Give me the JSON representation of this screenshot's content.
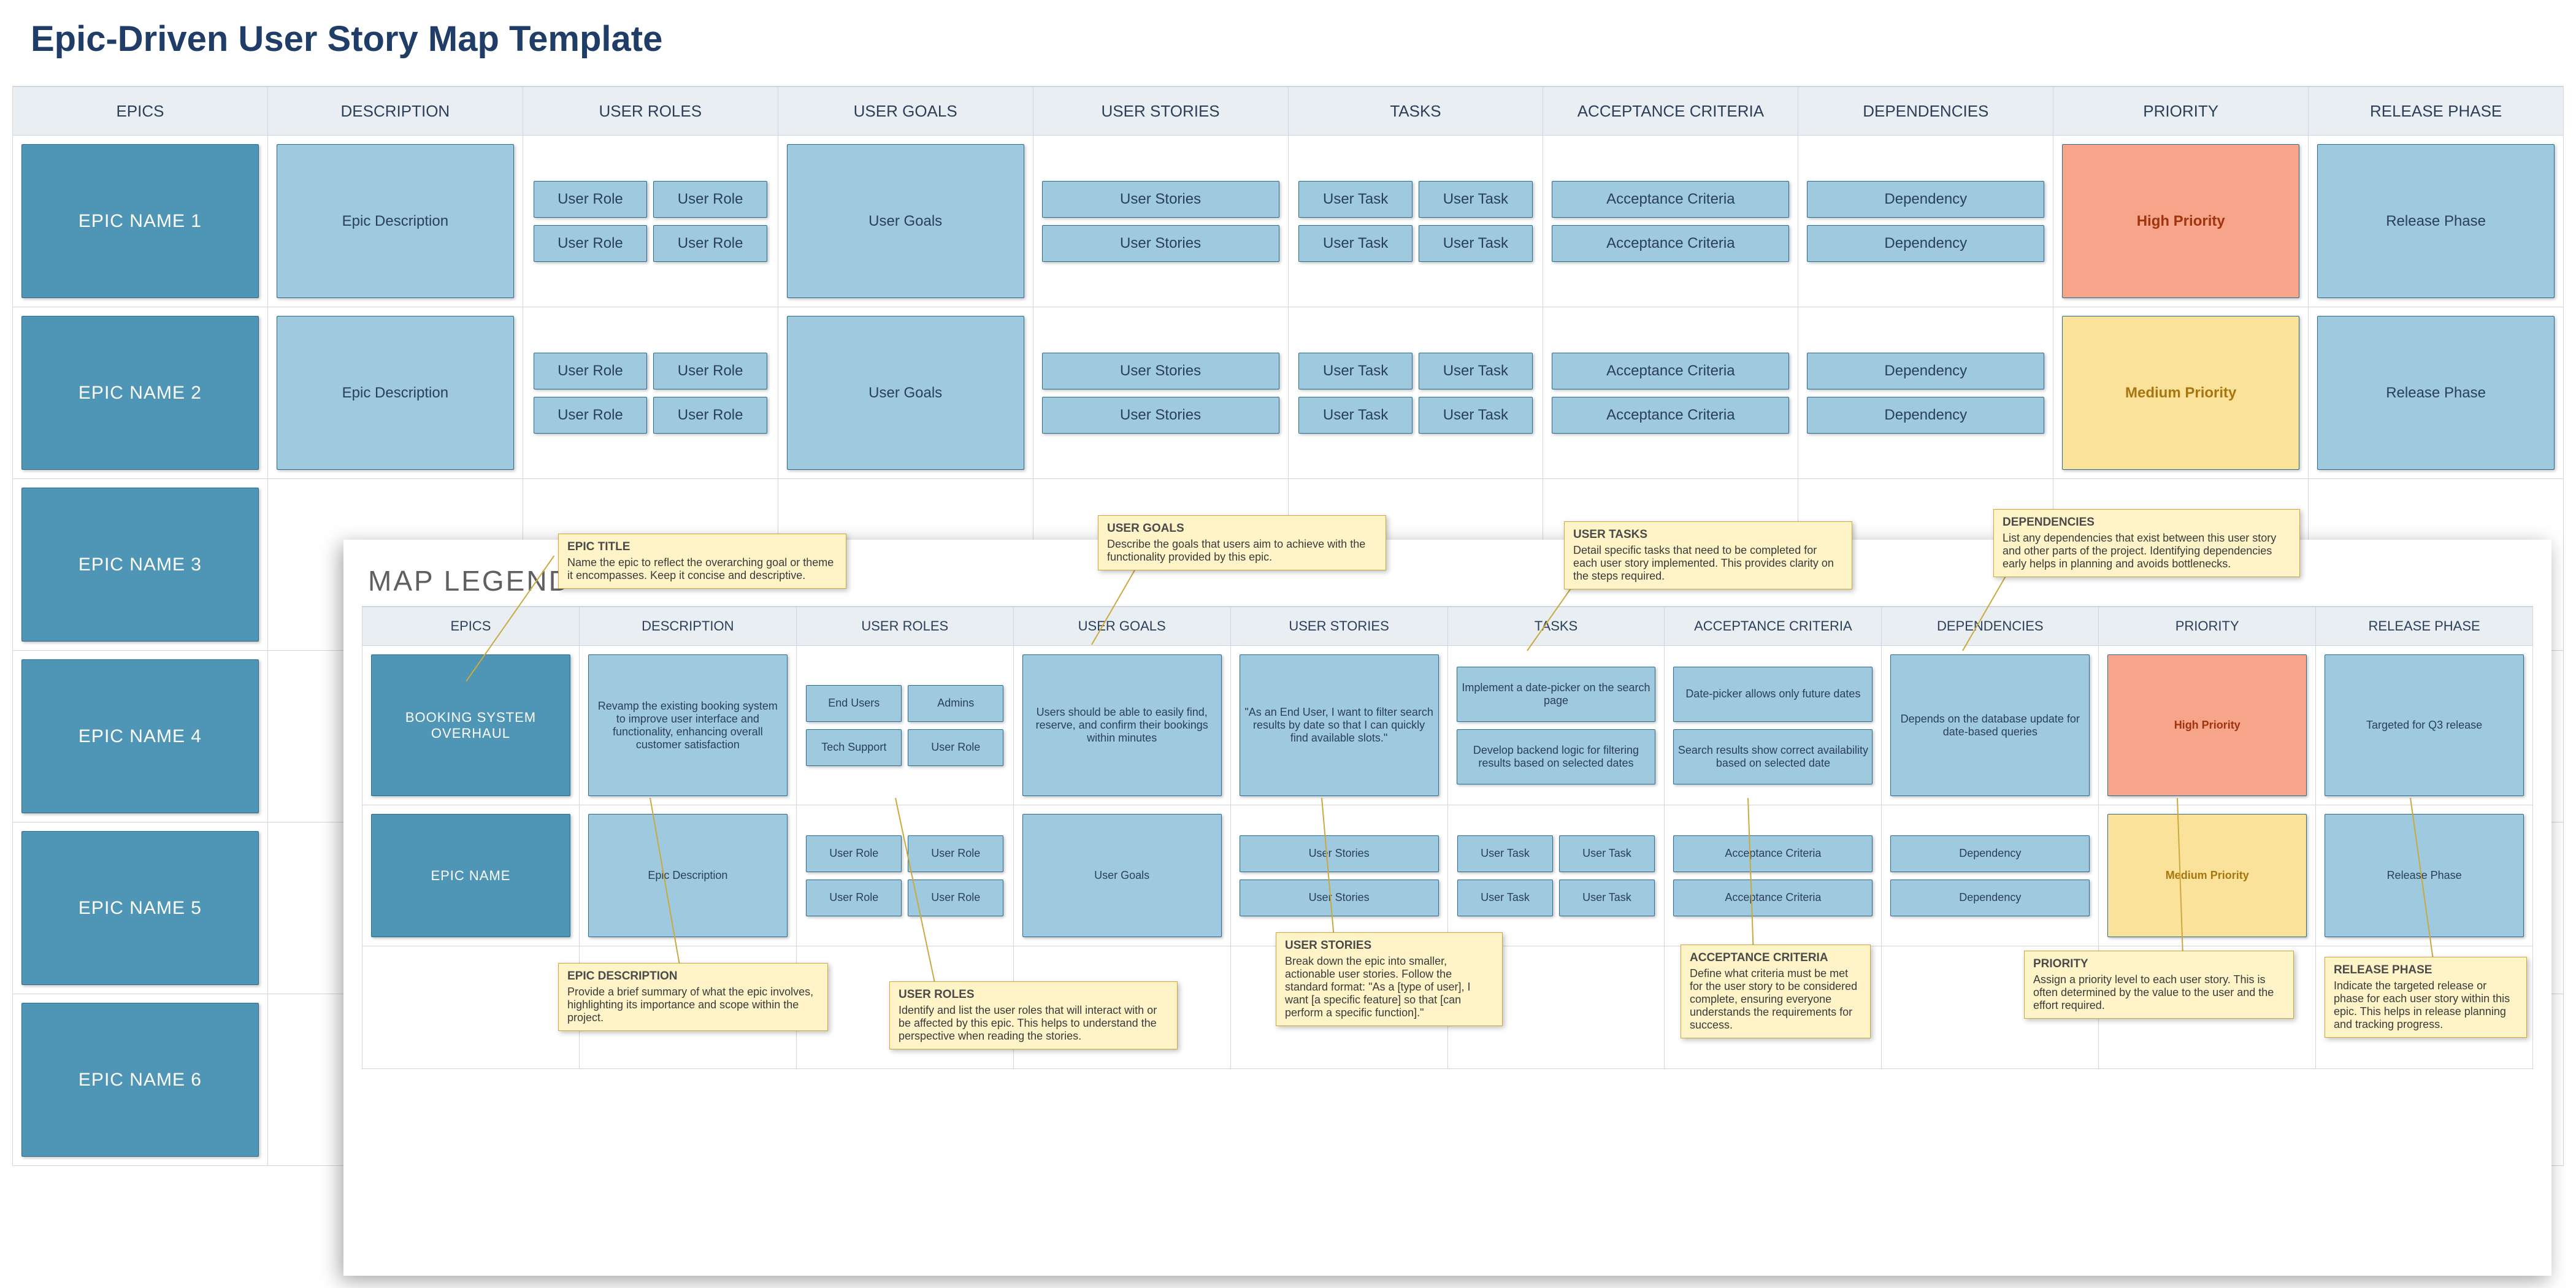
{
  "title": "Epic-Driven User Story Map Template",
  "columns": [
    "EPICS",
    "DESCRIPTION",
    "USER ROLES",
    "USER GOALS",
    "USER STORIES",
    "TASKS",
    "ACCEPTANCE CRITERIA",
    "DEPENDENCIES",
    "PRIORITY",
    "RELEASE PHASE"
  ],
  "labels": {
    "epic_desc": "Epic Description",
    "user_role": "User Role",
    "user_goals": "User Goals",
    "user_stories": "User Stories",
    "user_task": "User Task",
    "acceptance": "Acceptance Criteria",
    "dependency": "Dependency",
    "release": "Release Phase"
  },
  "priority": {
    "high": "High Priority",
    "medium": "Medium Priority"
  },
  "epics": [
    {
      "name": "EPIC NAME 1",
      "priority": "high"
    },
    {
      "name": "EPIC NAME 2",
      "priority": "medium"
    },
    {
      "name": "EPIC NAME 3",
      "priority": null
    },
    {
      "name": "EPIC NAME 4",
      "priority": null
    },
    {
      "name": "EPIC NAME 5",
      "priority": null
    },
    {
      "name": "EPIC NAME 6",
      "priority": null
    }
  ],
  "legend": {
    "title": "MAP LEGEND",
    "example": {
      "epic": "BOOKING SYSTEM OVERHAUL",
      "description": "Revamp the existing booking system to improve user interface and functionality, enhancing overall customer satisfaction",
      "roles": [
        "End Users",
        "Admins",
        "Tech Support",
        "User Role"
      ],
      "goal": "Users should be able to easily find, reserve, and confirm their bookings within minutes",
      "story": "\"As an End User, I want to filter search results by date so that I can quickly find available slots.\"",
      "tasks": [
        "Implement a date-picker on the search page",
        "Develop backend logic for filtering results based on selected dates"
      ],
      "criteria": [
        "Date-picker allows only future dates",
        "Search results show correct availability based on selected date"
      ],
      "dependency": "Depends on the database update for date-based queries",
      "priority": "High Priority",
      "release": "Targeted for Q3 release"
    },
    "generic": {
      "epic": "EPIC NAME"
    },
    "callouts": {
      "epic_title": {
        "t": "EPIC TITLE",
        "b": "Name the epic to reflect the overarching goal or theme it encompasses. Keep it concise and descriptive."
      },
      "user_goals": {
        "t": "USER GOALS",
        "b": "Describe the goals that users aim to achieve with the functionality provided by this epic."
      },
      "user_tasks": {
        "t": "USER TASKS",
        "b": "Detail specific tasks that need to be completed for each user story implemented. This provides clarity on the steps required."
      },
      "dependencies": {
        "t": "DEPENDENCIES",
        "b": "List any dependencies that exist between this user story and other parts of the project. Identifying dependencies early helps in planning and avoids bottlenecks."
      },
      "epic_desc": {
        "t": "EPIC DESCRIPTION",
        "b": "Provide a brief summary of what the epic involves, highlighting its importance and scope within the project."
      },
      "user_roles": {
        "t": "USER ROLES",
        "b": "Identify and list the user roles that will interact with or be affected by this epic. This helps to understand the perspective when reading the stories."
      },
      "user_stories": {
        "t": "USER STORIES",
        "b": "Break down the epic into smaller, actionable user stories. Follow the standard format: \"As a [type of user], I want [a specific feature] so that [can perform a specific function].\""
      },
      "acceptance": {
        "t": "ACCEPTANCE CRITERIA",
        "b": "Define what criteria must be met for the user story to be considered complete, ensuring everyone understands the requirements for success."
      },
      "priority": {
        "t": "PRIORITY",
        "b": "Assign a priority level to each user story. This is often determined by the value to the user and the effort required."
      },
      "release": {
        "t": "RELEASE PHASE",
        "b": "Indicate the targeted release or phase for each user story within this epic. This helps in release planning and tracking progress."
      }
    }
  },
  "colors": {
    "card_bg": "#9ec9de",
    "card_border": "#2a6c8e",
    "epic_bg": "#4f95b5",
    "header_bg": "#e9eef3",
    "grid_border": "#d0d6de",
    "high_bg": "#f6a48a",
    "high_text": "#a0340c",
    "med_bg": "#fbe29a",
    "med_text": "#a7760e",
    "callout_bg": "#fff3c8",
    "callout_border": "#caa93f",
    "title_color": "#1f3d66"
  }
}
